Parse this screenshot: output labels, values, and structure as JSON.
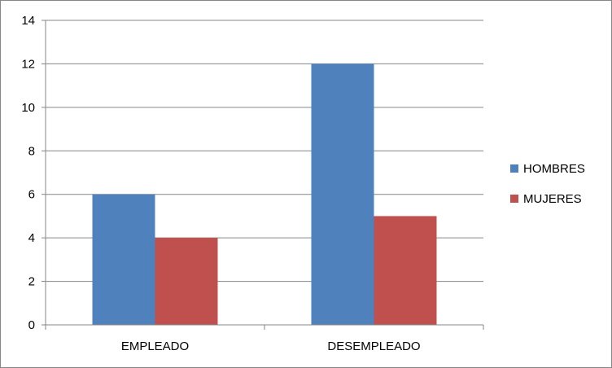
{
  "chart_data": {
    "type": "bar",
    "categories": [
      "EMPLEADO",
      "DESEMPLEADO"
    ],
    "series": [
      {
        "name": "HOMBRES",
        "values": [
          6,
          12
        ],
        "color": "#4F81BD"
      },
      {
        "name": "MUJERES",
        "values": [
          4,
          5
        ],
        "color": "#C0504D"
      }
    ],
    "ylim": [
      0,
      14
    ],
    "yticks": [
      0,
      2,
      4,
      6,
      8,
      10,
      12,
      14
    ],
    "ytick_labels": [
      "0",
      "2",
      "4",
      "6",
      "8",
      "10",
      "12",
      "14"
    ],
    "grid": true,
    "legend_position": "right"
  }
}
